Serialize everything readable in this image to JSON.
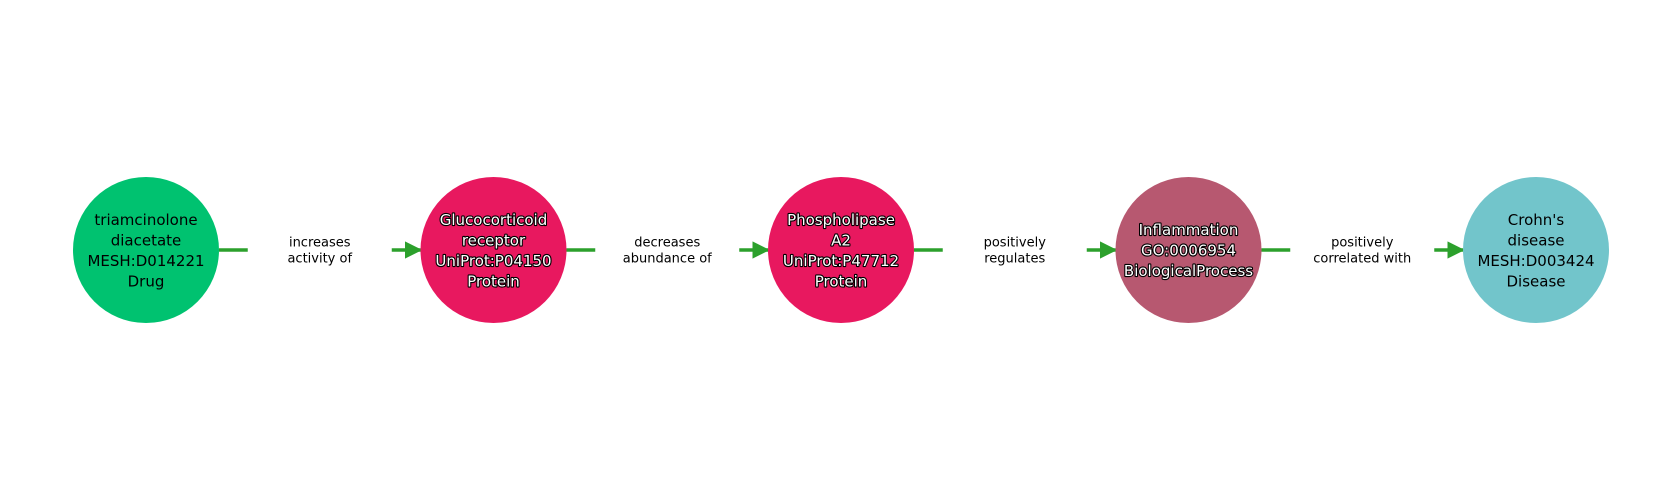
{
  "diagram": {
    "nodes": [
      {
        "id": "n1",
        "lines": [
          "triamcinolone",
          "diacetate",
          "MESH:D014221",
          "Drug"
        ],
        "color": "#00c270",
        "text_style": "dark"
      },
      {
        "id": "n2",
        "lines": [
          "Glucocorticoid",
          "receptor",
          "UniProt:P04150",
          "Protein"
        ],
        "color": "#e8185f",
        "text_style": "light"
      },
      {
        "id": "n3",
        "lines": [
          "Phospholipase",
          "A2",
          "UniProt:P47712",
          "Protein"
        ],
        "color": "#e8185f",
        "text_style": "light"
      },
      {
        "id": "n4",
        "lines": [
          "Inflammation",
          "GO:0006954",
          "BiologicalProcess"
        ],
        "color": "#b75870",
        "text_style": "light"
      },
      {
        "id": "n5",
        "lines": [
          "Crohn's",
          "disease",
          "MESH:D003424",
          "Disease"
        ],
        "color": "#72c5cb",
        "text_style": "dark"
      }
    ],
    "edges": [
      {
        "from": "n1",
        "to": "n2",
        "lines": [
          "increases",
          "activity of"
        ]
      },
      {
        "from": "n2",
        "to": "n3",
        "lines": [
          "decreases",
          "abundance of"
        ]
      },
      {
        "from": "n3",
        "to": "n4",
        "lines": [
          "positively",
          "regulates"
        ]
      },
      {
        "from": "n4",
        "to": "n5",
        "lines": [
          "positively",
          "correlated with"
        ]
      }
    ],
    "edge_color": "#2ca02c"
  }
}
